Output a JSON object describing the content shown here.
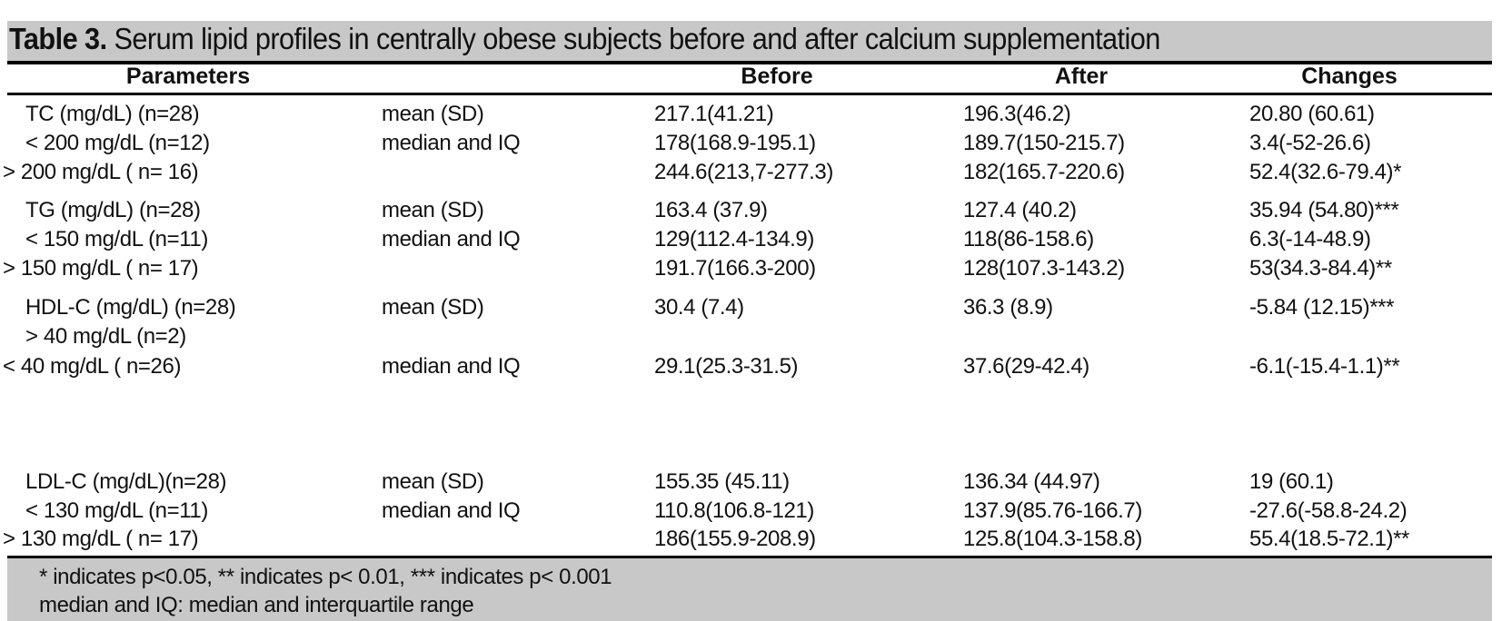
{
  "title": {
    "label": "Table 3.",
    "text": " Serum lipid profiles in centrally obese subjects before and after calcium supplementation"
  },
  "headers": [
    "Parameters",
    "",
    "Before",
    "After",
    "Changes"
  ],
  "rows": [
    {
      "param": "TC (mg/dL) (n=28)",
      "stat": "mean (SD)",
      "before": "217.1(41.21)",
      "after": "196.3(46.2)",
      "change": "20.80 (60.61)"
    },
    {
      "param": "< 200 mg/dL (n=12)",
      "stat": "median and IQ",
      "before": "178(168.9-195.1)",
      "after": "189.7(150-215.7)",
      "change": "3.4(-52-26.6)"
    },
    {
      "param": "> 200 mg/dL ( n= 16)",
      "stat": "",
      "before": "244.6(213,7-277.3)",
      "after": "182(165.7-220.6)",
      "change": "52.4(32.6-79.4)*"
    },
    {
      "param": "TG (mg/dL) (n=28)",
      "stat": "mean (SD)",
      "before": "163.4 (37.9)",
      "after": "127.4 (40.2)",
      "change": "35.94 (54.80)***"
    },
    {
      "param": "< 150 mg/dL (n=11)",
      "stat": "median and IQ",
      "before": "129(112.4-134.9)",
      "after": "118(86-158.6)",
      "change": "6.3(-14-48.9)"
    },
    {
      "param": "> 150 mg/dL ( n= 17)",
      "stat": "",
      "before": "191.7(166.3-200)",
      "after": "128(107.3-143.2)",
      "change": "53(34.3-84.4)**"
    },
    {
      "param": "HDL-C (mg/dL) (n=28)",
      "stat": "mean (SD)",
      "before": "30.4 (7.4)",
      "after": "36.3 (8.9)",
      "change": "-5.84 (12.15)***"
    },
    {
      "param": "> 40  mg/dL (n=2)",
      "stat": "",
      "before": "",
      "after": "",
      "change": ""
    },
    {
      "param": "< 40 mg/dL ( n=26)",
      "stat": "median and IQ",
      "before": "29.1(25.3-31.5)",
      "after": "37.6(29-42.4)",
      "change": "-6.1(-15.4-1.1)**"
    },
    {
      "param": "LDL-C (mg/dL)(n=28)",
      "stat": "mean (SD)",
      "before": "155.35 (45.11)",
      "after": "136.34 (44.97)",
      "change": "19 (60.1)"
    },
    {
      "param": "< 130 mg/dL (n=11)",
      "stat": "median and IQ",
      "before": "110.8(106.8-121)",
      "after": "137.9(85.76-166.7)",
      "change": "-27.6(-58.8-24.2)"
    },
    {
      "param": "> 130 mg/dL ( n= 17)",
      "stat": "",
      "before": "186(155.9-208.9)",
      "after": "125.8(104.3-158.8)",
      "change": "55.4(18.5-72.1)**"
    }
  ],
  "footnotes": [
    "* indicates p<0.05, ** indicates p< 0.01, *** indicates p< 0.001",
    "median and IQ: median and interquartile range"
  ],
  "colors": {
    "band": "#c8c8c8",
    "text": "#111111"
  }
}
